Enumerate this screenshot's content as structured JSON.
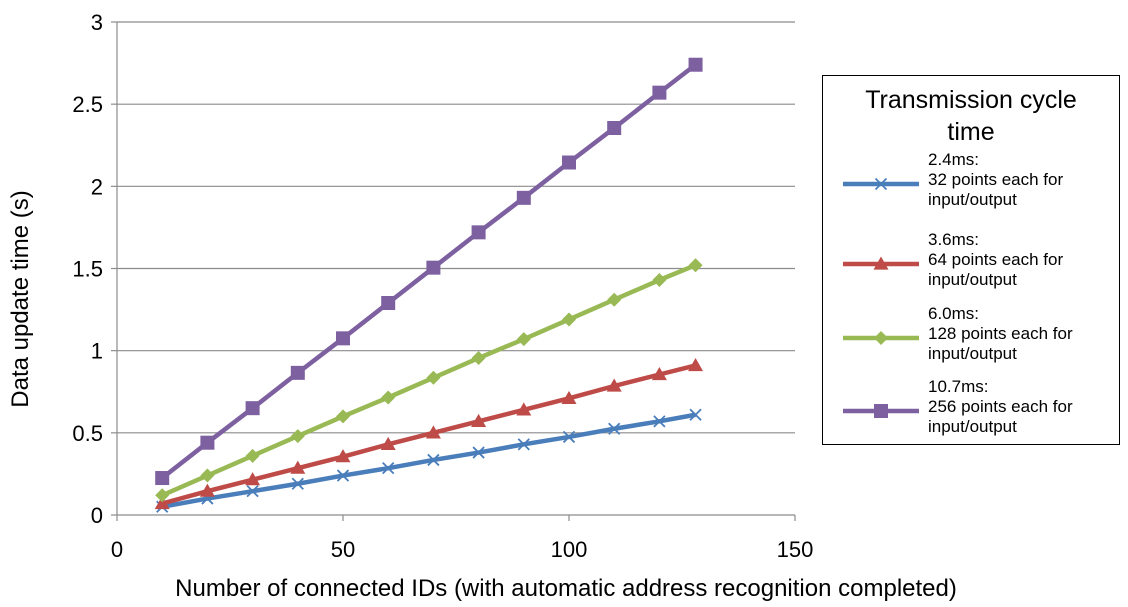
{
  "chart_data": {
    "type": "line",
    "title": "",
    "xlabel": "Number of connected IDs (with automatic address recognition completed)",
    "ylabel": "Data update time (s)",
    "xlim": [
      0,
      150
    ],
    "ylim": [
      0,
      3
    ],
    "x_ticks": [
      "0",
      "50",
      "100",
      "150"
    ],
    "y_ticks": [
      "0",
      "0.5",
      "1",
      "1.5",
      "2",
      "2.5",
      "3"
    ],
    "grid": "horizontal",
    "legend": {
      "title": [
        "Transmission cycle",
        "time"
      ],
      "placement": "right"
    },
    "x": [
      10,
      20,
      30,
      40,
      50,
      60,
      70,
      80,
      90,
      100,
      110,
      120,
      128
    ],
    "series": [
      {
        "name": [
          "2.4ms:",
          "32 points each for",
          "input/output"
        ],
        "color": "#4a7ebb",
        "marker": "x",
        "values": [
          0.05,
          0.1,
          0.145,
          0.19,
          0.24,
          0.285,
          0.335,
          0.38,
          0.43,
          0.475,
          0.525,
          0.57,
          0.61
        ]
      },
      {
        "name": [
          "3.6ms:",
          "64 points each for",
          "input/output"
        ],
        "color": "#be4b48",
        "marker": "triangle",
        "values": [
          0.07,
          0.145,
          0.215,
          0.285,
          0.355,
          0.43,
          0.5,
          0.57,
          0.64,
          0.71,
          0.785,
          0.855,
          0.91
        ]
      },
      {
        "name": [
          "6.0ms:",
          "128 points each for",
          "input/output"
        ],
        "color": "#98b954",
        "marker": "diamond",
        "values": [
          0.12,
          0.24,
          0.36,
          0.48,
          0.6,
          0.715,
          0.835,
          0.955,
          1.07,
          1.19,
          1.31,
          1.43,
          1.52
        ]
      },
      {
        "name": [
          "10.7ms:",
          "256 points each for",
          "input/output"
        ],
        "color": "#7d60a0",
        "marker": "square",
        "values": [
          0.225,
          0.44,
          0.65,
          0.865,
          1.075,
          1.29,
          1.505,
          1.72,
          1.93,
          2.145,
          2.355,
          2.57,
          2.74
        ]
      }
    ]
  }
}
